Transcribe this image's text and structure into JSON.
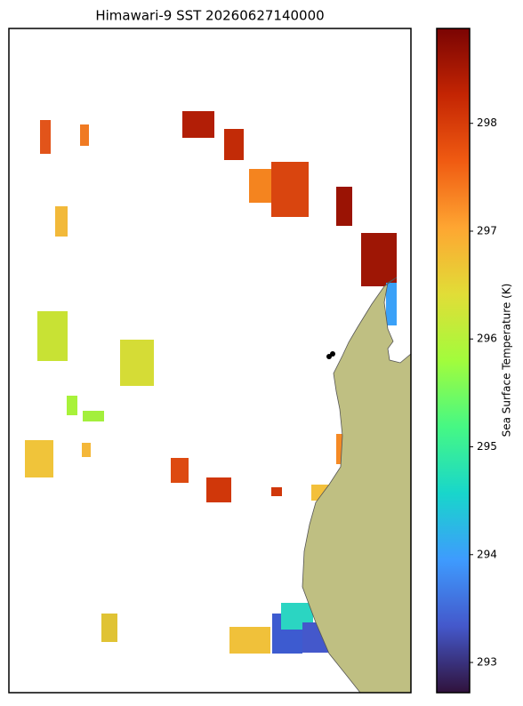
{
  "chart_data": {
    "type": "map",
    "title": "Himawari-9 SST 20260627140000",
    "colorbar": {
      "label": "Sea Surface Temperature (K)",
      "lim": [
        292.72,
        298.88
      ],
      "ticks": [
        293,
        294,
        295,
        296,
        297,
        298
      ]
    }
  }
}
